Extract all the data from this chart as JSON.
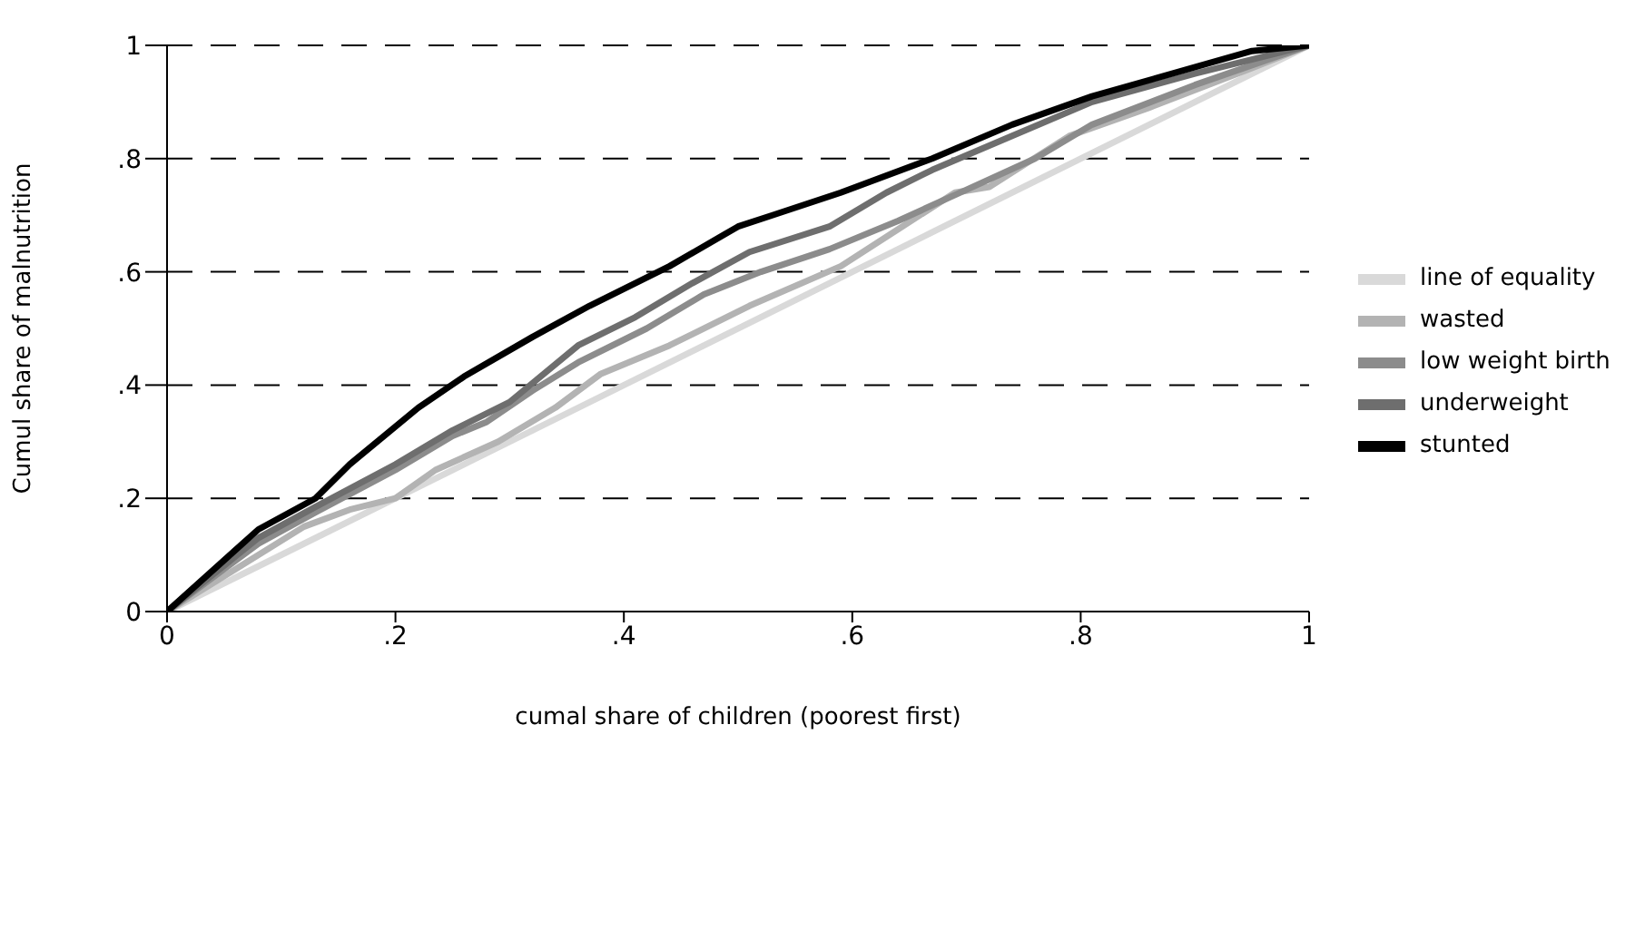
{
  "chart_data": {
    "type": "line",
    "xlabel": "cumal share of children (poorest first)",
    "ylabel": "Cumul share of malnutrition",
    "xlim": [
      0,
      1
    ],
    "ylim": [
      0,
      1
    ],
    "xticks": [
      0,
      {
        "value": 0.2,
        "label": ".2"
      },
      {
        "value": 0.4,
        "label": ".4"
      },
      {
        "value": 0.6,
        "label": ".6"
      },
      {
        "value": 0.8,
        "label": ".8"
      },
      1
    ],
    "yticks": [
      0,
      {
        "value": 0.2,
        "label": ".2"
      },
      {
        "value": 0.4,
        "label": ".4"
      },
      {
        "value": 0.6,
        "label": ".6"
      },
      {
        "value": 0.8,
        "label": ".8"
      },
      1
    ],
    "grid": "y",
    "legend": "right",
    "marker": "none",
    "line_style": "solid",
    "series": [
      {
        "name": "line of equality",
        "color": "#d9d9d9",
        "x": [
          0,
          1
        ],
        "values": [
          0,
          1
        ]
      },
      {
        "name": "wasted",
        "color": "#b3b3b3",
        "x": [
          0,
          0.12,
          0.16,
          0.2,
          0.235,
          0.29,
          0.34,
          0.38,
          0.44,
          0.51,
          0.59,
          0.69,
          0.72,
          0.79,
          0.86,
          0.95,
          1
        ],
        "values": [
          0,
          0.15,
          0.18,
          0.2,
          0.25,
          0.3,
          0.36,
          0.42,
          0.47,
          0.54,
          0.61,
          0.74,
          0.75,
          0.84,
          0.89,
          0.96,
          1
        ]
      },
      {
        "name": "low weight birth",
        "color": "#8c8c8c",
        "x": [
          0,
          0.08,
          0.13,
          0.2,
          0.25,
          0.28,
          0.32,
          0.36,
          0.42,
          0.47,
          0.52,
          0.58,
          0.64,
          0.7,
          0.76,
          0.81,
          0.9,
          1
        ],
        "values": [
          0,
          0.12,
          0.175,
          0.25,
          0.31,
          0.335,
          0.39,
          0.44,
          0.5,
          0.56,
          0.6,
          0.64,
          0.69,
          0.745,
          0.8,
          0.86,
          0.93,
          1
        ]
      },
      {
        "name": "underweight",
        "color": "#6e6e6e",
        "x": [
          0,
          0.08,
          0.13,
          0.2,
          0.25,
          0.3,
          0.36,
          0.41,
          0.46,
          0.51,
          0.58,
          0.63,
          0.67,
          0.74,
          0.81,
          0.9,
          1
        ],
        "values": [
          0,
          0.13,
          0.185,
          0.26,
          0.32,
          0.37,
          0.47,
          0.52,
          0.58,
          0.635,
          0.68,
          0.74,
          0.78,
          0.84,
          0.9,
          0.95,
          1
        ]
      },
      {
        "name": "stunted",
        "color": "#000000",
        "x": [
          0,
          0.08,
          0.13,
          0.16,
          0.22,
          0.26,
          0.32,
          0.37,
          0.44,
          0.5,
          0.53,
          0.59,
          0.67,
          0.74,
          0.81,
          0.95,
          1
        ],
        "values": [
          0,
          0.145,
          0.2,
          0.26,
          0.36,
          0.415,
          0.485,
          0.54,
          0.61,
          0.68,
          0.7,
          0.74,
          0.8,
          0.86,
          0.91,
          0.99,
          1
        ]
      }
    ]
  }
}
